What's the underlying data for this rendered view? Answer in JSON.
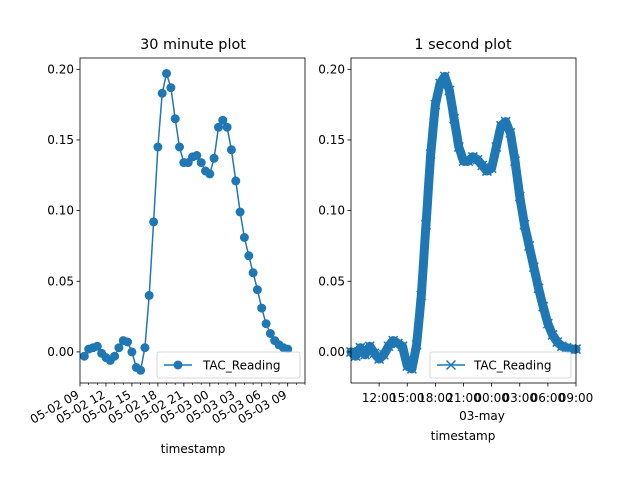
{
  "chart_data": [
    {
      "type": "line",
      "title": "30 minute plot",
      "xlabel": "timestamp",
      "ylabel": "",
      "ylim": [
        -0.022,
        0.208
      ],
      "xlim": [
        "2024-05-02 09:00",
        "2024-05-03 11:00"
      ],
      "y_ticks": [
        "0.00",
        "0.05",
        "0.10",
        "0.15",
        "0.20"
      ],
      "x_ticks": [
        "05-02 09",
        "05-02 12",
        "05-02 15",
        "05-02 18",
        "05-02 21",
        "05-03 00",
        "05-03 03",
        "05-03 06",
        "05-03 09"
      ],
      "legend": {
        "position": "lower right",
        "entries": [
          {
            "label": "TAC_Reading",
            "marker": "circle"
          }
        ]
      },
      "series": [
        {
          "name": "TAC_Reading",
          "marker": "circle",
          "color": "#1f77b4",
          "points": [
            [
              "2024-05-02 09:30",
              -0.003
            ],
            [
              "2024-05-02 10:00",
              0.002
            ],
            [
              "2024-05-02 10:30",
              0.003
            ],
            [
              "2024-05-02 11:00",
              0.004
            ],
            [
              "2024-05-02 11:30",
              -0.001
            ],
            [
              "2024-05-02 12:00",
              -0.004
            ],
            [
              "2024-05-02 12:30",
              -0.006
            ],
            [
              "2024-05-02 13:00",
              -0.003
            ],
            [
              "2024-05-02 13:30",
              0.003
            ],
            [
              "2024-05-02 14:00",
              0.008
            ],
            [
              "2024-05-02 14:30",
              0.007
            ],
            [
              "2024-05-02 15:00",
              0.0
            ],
            [
              "2024-05-02 15:30",
              -0.011
            ],
            [
              "2024-05-02 16:00",
              -0.013
            ],
            [
              "2024-05-02 16:30",
              0.003
            ],
            [
              "2024-05-02 17:00",
              0.04
            ],
            [
              "2024-05-02 17:30",
              0.092
            ],
            [
              "2024-05-02 18:00",
              0.145
            ],
            [
              "2024-05-02 18:30",
              0.183
            ],
            [
              "2024-05-02 19:00",
              0.197
            ],
            [
              "2024-05-02 19:30",
              0.187
            ],
            [
              "2024-05-02 20:00",
              0.165
            ],
            [
              "2024-05-02 20:30",
              0.145
            ],
            [
              "2024-05-02 21:00",
              0.134
            ],
            [
              "2024-05-02 21:30",
              0.134
            ],
            [
              "2024-05-02 22:00",
              0.138
            ],
            [
              "2024-05-02 22:30",
              0.139
            ],
            [
              "2024-05-02 23:00",
              0.134
            ],
            [
              "2024-05-02 23:30",
              0.128
            ],
            [
              "2024-05-03 00:00",
              0.126
            ],
            [
              "2024-05-03 00:30",
              0.137
            ],
            [
              "2024-05-03 01:00",
              0.159
            ],
            [
              "2024-05-03 01:30",
              0.164
            ],
            [
              "2024-05-03 02:00",
              0.159
            ],
            [
              "2024-05-03 02:30",
              0.143
            ],
            [
              "2024-05-03 03:00",
              0.121
            ],
            [
              "2024-05-03 03:30",
              0.099
            ],
            [
              "2024-05-03 04:00",
              0.081
            ],
            [
              "2024-05-03 04:30",
              0.068
            ],
            [
              "2024-05-03 05:00",
              0.056
            ],
            [
              "2024-05-03 05:30",
              0.044
            ],
            [
              "2024-05-03 06:00",
              0.031
            ],
            [
              "2024-05-03 06:30",
              0.02
            ],
            [
              "2024-05-03 07:00",
              0.013
            ],
            [
              "2024-05-03 07:30",
              0.008
            ],
            [
              "2024-05-03 08:00",
              0.005
            ],
            [
              "2024-05-03 08:30",
              0.003
            ],
            [
              "2024-05-03 09:00",
              0.002
            ]
          ]
        }
      ]
    },
    {
      "type": "line",
      "title": "1 second plot",
      "xlabel": "timestamp",
      "ylabel": "",
      "ylim": [
        -0.022,
        0.208
      ],
      "xlim": [
        "2024-05-02 09:00",
        "2024-05-03 09:00"
      ],
      "y_ticks": [
        "0.00",
        "0.05",
        "0.10",
        "0.15",
        "0.20"
      ],
      "x_ticks": [
        "12:00",
        "15:00",
        "18:00",
        "21:00",
        "00:00",
        "03:00",
        "06:00",
        "09:00"
      ],
      "x_secondary_label": "03-may",
      "legend": {
        "position": "lower right",
        "entries": [
          {
            "label": "TAC_Reading",
            "marker": "x"
          }
        ]
      },
      "series": [
        {
          "name": "TAC_Reading",
          "marker": "x",
          "color": "#1f77b4",
          "points": [
            [
              "2024-05-02 09:00",
              0.0
            ],
            [
              "2024-05-02 09:30",
              -0.003
            ],
            [
              "2024-05-02 10:00",
              0.003
            ],
            [
              "2024-05-02 10:30",
              -0.002
            ],
            [
              "2024-05-02 11:00",
              0.004
            ],
            [
              "2024-05-02 11:30",
              -0.001
            ],
            [
              "2024-05-02 12:00",
              -0.005
            ],
            [
              "2024-05-02 12:30",
              -0.002
            ],
            [
              "2024-05-02 13:00",
              0.004
            ],
            [
              "2024-05-02 13:30",
              0.008
            ],
            [
              "2024-05-02 14:00",
              0.006
            ],
            [
              "2024-05-02 14:30",
              0.004
            ],
            [
              "2024-05-02 15:00",
              -0.01
            ],
            [
              "2024-05-02 15:30",
              -0.012
            ],
            [
              "2024-05-02 16:00",
              0.005
            ],
            [
              "2024-05-02 16:30",
              0.04
            ],
            [
              "2024-05-02 17:00",
              0.09
            ],
            [
              "2024-05-02 17:30",
              0.14
            ],
            [
              "2024-05-02 18:00",
              0.175
            ],
            [
              "2024-05-02 18:30",
              0.19
            ],
            [
              "2024-05-02 19:00",
              0.195
            ],
            [
              "2024-05-02 19:30",
              0.185
            ],
            [
              "2024-05-02 20:00",
              0.165
            ],
            [
              "2024-05-02 20:30",
              0.145
            ],
            [
              "2024-05-02 21:00",
              0.135
            ],
            [
              "2024-05-02 21:30",
              0.135
            ],
            [
              "2024-05-02 22:00",
              0.138
            ],
            [
              "2024-05-02 22:30",
              0.136
            ],
            [
              "2024-05-02 23:00",
              0.132
            ],
            [
              "2024-05-02 23:30",
              0.128
            ],
            [
              "2024-05-03 00:00",
              0.13
            ],
            [
              "2024-05-03 00:30",
              0.145
            ],
            [
              "2024-05-03 01:00",
              0.16
            ],
            [
              "2024-05-03 01:30",
              0.163
            ],
            [
              "2024-05-03 02:00",
              0.155
            ],
            [
              "2024-05-03 02:30",
              0.135
            ],
            [
              "2024-05-03 03:00",
              0.11
            ],
            [
              "2024-05-03 03:30",
              0.09
            ],
            [
              "2024-05-03 04:00",
              0.075
            ],
            [
              "2024-05-03 04:30",
              0.06
            ],
            [
              "2024-05-03 05:00",
              0.045
            ],
            [
              "2024-05-03 05:30",
              0.032
            ],
            [
              "2024-05-03 06:00",
              0.02
            ],
            [
              "2024-05-03 06:30",
              0.012
            ],
            [
              "2024-05-03 07:00",
              0.007
            ],
            [
              "2024-05-03 07:30",
              0.004
            ],
            [
              "2024-05-03 08:00",
              0.003
            ],
            [
              "2024-05-03 08:30",
              0.002
            ],
            [
              "2024-05-03 09:00",
              0.002
            ]
          ]
        }
      ]
    }
  ]
}
